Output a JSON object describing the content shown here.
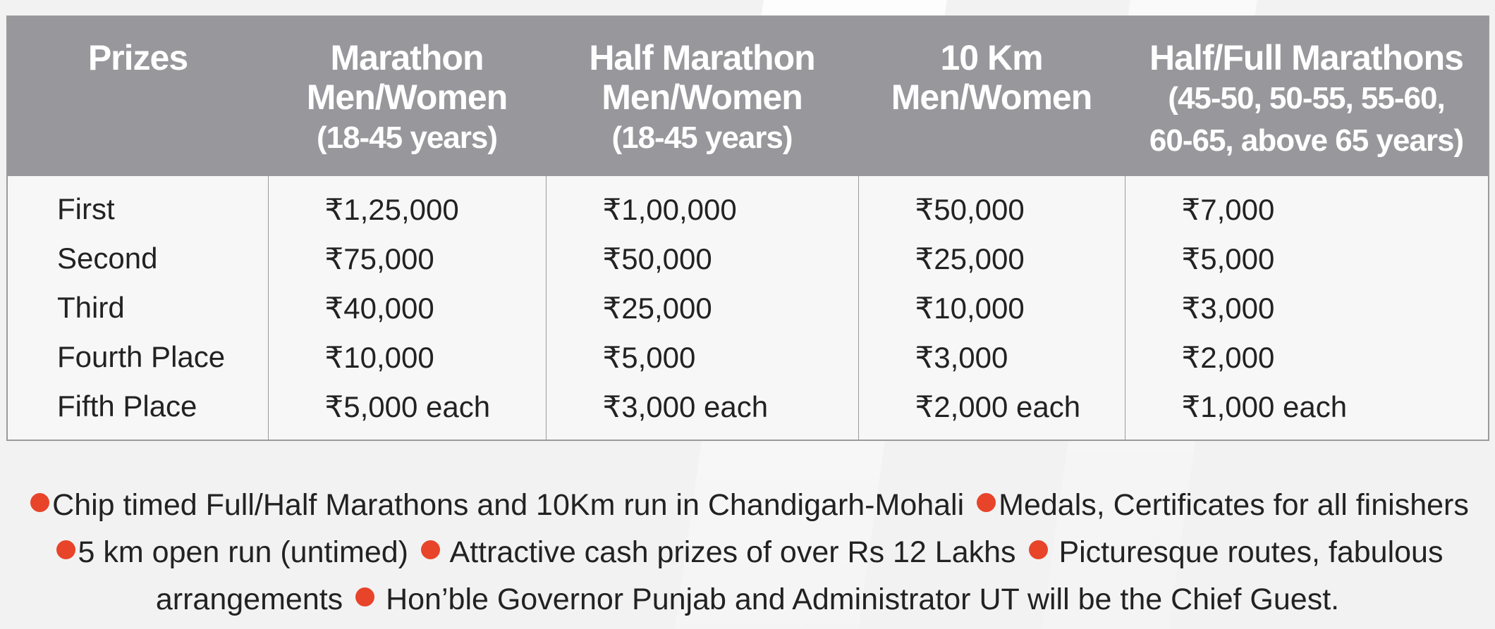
{
  "table": {
    "headers": [
      {
        "lines": [
          "Prizes"
        ],
        "sub": []
      },
      {
        "lines": [
          "Marathon",
          "Men/Women"
        ],
        "sub": [
          "(18-45 years)"
        ]
      },
      {
        "lines": [
          "Half Marathon",
          "Men/Women"
        ],
        "sub": [
          "(18-45 years)"
        ]
      },
      {
        "lines": [
          "10 Km",
          "Men/Women"
        ],
        "sub": []
      },
      {
        "lines": [
          "Half/Full Marathons"
        ],
        "sub": [
          "(45-50, 50-55, 55-60,",
          "60-65, above 65 years)"
        ]
      }
    ],
    "rows": [
      {
        "label": "First",
        "values": [
          "₹1,25,000",
          "₹1,00,000",
          "₹50,000",
          "₹7,000"
        ]
      },
      {
        "label": "Second",
        "values": [
          "₹75,000",
          "₹50,000",
          "₹25,000",
          "₹5,000"
        ]
      },
      {
        "label": "Third",
        "values": [
          "₹40,000",
          "₹25,000",
          "₹10,000",
          "₹3,000"
        ]
      },
      {
        "label": "Fourth Place",
        "values": [
          "₹10,000",
          "₹5,000",
          "₹3,000",
          "₹2,000"
        ]
      },
      {
        "label": "Fifth Place",
        "values": [
          "₹5,000 each",
          "₹3,000 each",
          "₹2,000 each",
          "₹1,000 each"
        ]
      }
    ]
  },
  "highlights": [
    "Chip timed Full/Half Marathons and 10Km run in Chandigarh-Mohali",
    "Medals, Certificates for all finishers",
    "5 km open run (untimed)",
    "Attractive cash prizes of over Rs 12 Lakhs",
    "Picturesque routes, fabulous arrangements",
    "Hon’ble Governor Punjab and Administrator UT will be the Chief Guest."
  ],
  "colors": {
    "header_bg": "#98979c",
    "bullet_dot": "#e8442a",
    "table_bg": "#f7f7f7"
  }
}
